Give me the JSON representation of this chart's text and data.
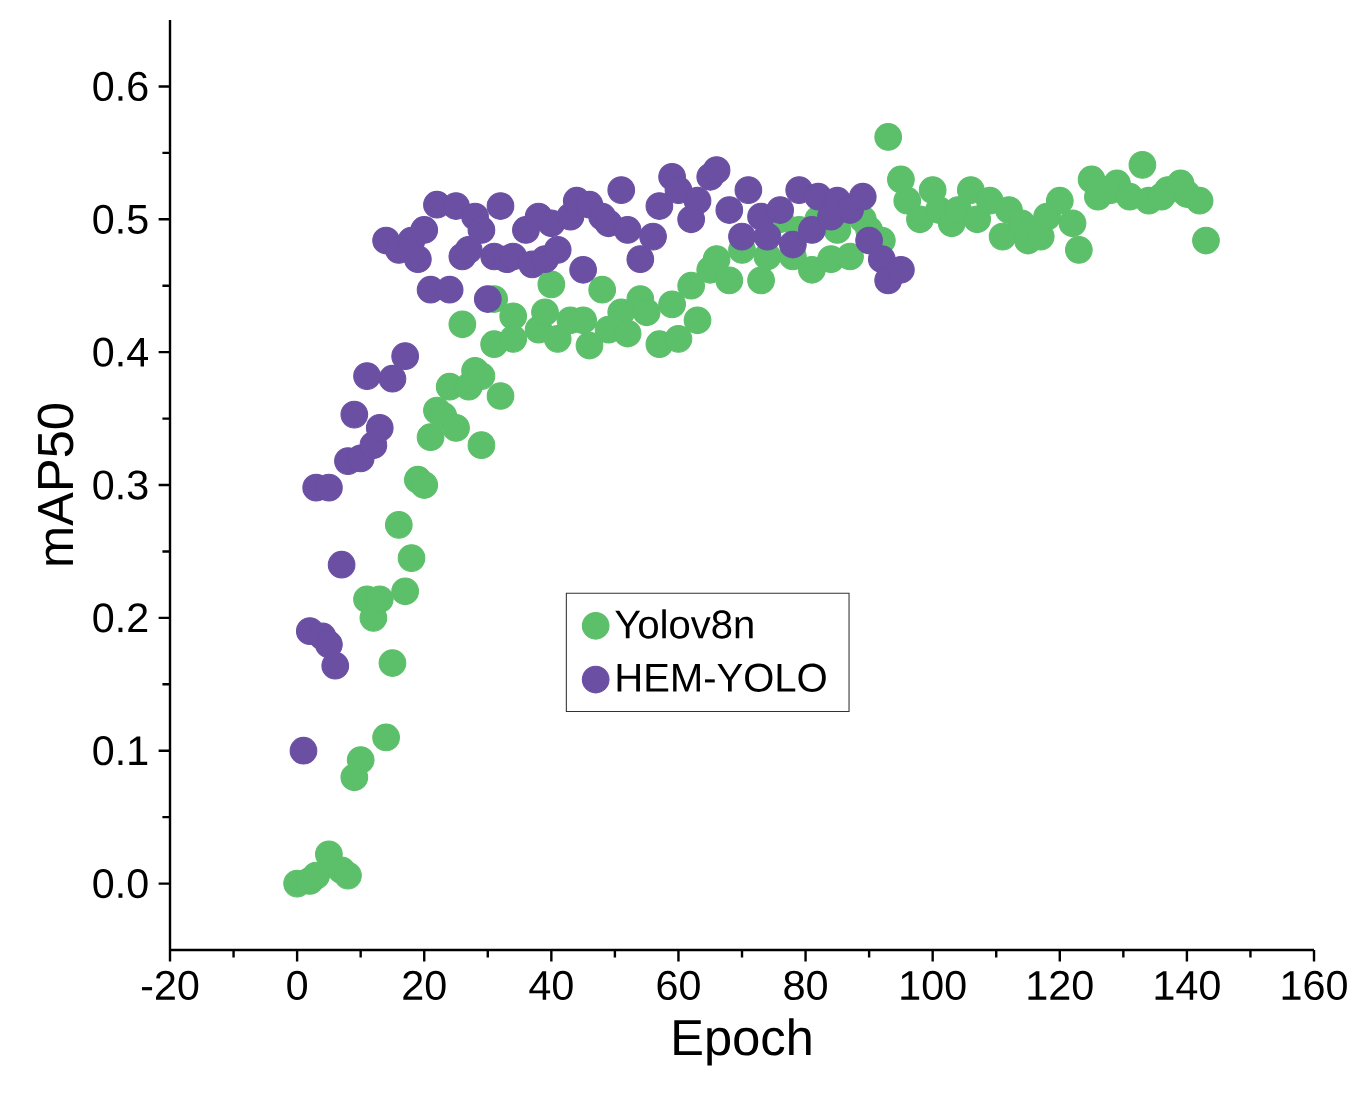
{
  "chart_data": {
    "type": "scatter",
    "xlabel": "Epoch",
    "ylabel": "mAP50",
    "xlim": [
      -20,
      160
    ],
    "xticks": [
      -20,
      0,
      20,
      40,
      60,
      80,
      100,
      120,
      140,
      160
    ],
    "ylim": [
      -0.05,
      0.65
    ],
    "yticks": [
      {
        "value": 0.0,
        "label": "0.0"
      },
      0.1,
      0.2,
      0.3,
      0.4,
      0.5,
      0.6
    ],
    "legend": "center",
    "series": [
      {
        "name": "Yolov8n",
        "color": "#5cbf6a",
        "x": [
          0,
          2,
          3,
          5,
          7,
          8,
          9,
          10,
          11,
          12,
          13,
          14,
          15,
          16,
          17,
          18,
          19,
          20,
          21,
          22,
          23,
          24,
          25,
          26,
          27,
          28,
          29,
          29,
          31,
          31,
          32,
          34,
          34,
          38,
          39,
          40,
          41,
          43,
          45,
          46,
          48,
          49,
          51,
          52,
          54,
          55,
          57,
          59,
          60,
          62,
          63,
          65,
          66,
          68,
          70,
          73,
          74,
          76,
          78,
          79,
          81,
          82,
          84,
          85,
          87,
          89,
          90,
          92,
          93,
          95,
          96,
          98,
          100,
          101,
          103,
          104,
          106,
          107,
          109,
          111,
          112,
          114,
          115,
          117,
          118,
          120,
          122,
          123,
          125,
          126,
          128,
          129,
          131,
          133,
          134,
          136,
          137,
          139,
          140,
          142,
          143
        ],
        "values": [
          0.0,
          0.002,
          0.006,
          0.022,
          0.01,
          0.006,
          0.08,
          0.093,
          0.214,
          0.2,
          0.214,
          0.11,
          0.166,
          0.27,
          0.22,
          0.245,
          0.304,
          0.3,
          0.336,
          0.356,
          0.352,
          0.374,
          0.343,
          0.421,
          0.374,
          0.386,
          0.382,
          0.33,
          0.44,
          0.406,
          0.367,
          0.427,
          0.41,
          0.417,
          0.43,
          0.451,
          0.41,
          0.424,
          0.424,
          0.405,
          0.447,
          0.417,
          0.43,
          0.414,
          0.44,
          0.43,
          0.406,
          0.436,
          0.41,
          0.45,
          0.424,
          0.462,
          0.47,
          0.454,
          0.477,
          0.454,
          0.472,
          0.5,
          0.472,
          0.492,
          0.462,
          0.5,
          0.47,
          0.492,
          0.472,
          0.5,
          0.492,
          0.484,
          0.562,
          0.53,
          0.514,
          0.5,
          0.522,
          0.507,
          0.497,
          0.507,
          0.522,
          0.5,
          0.514,
          0.487,
          0.507,
          0.497,
          0.484,
          0.487,
          0.502,
          0.514,
          0.497,
          0.477,
          0.53,
          0.517,
          0.522,
          0.527,
          0.517,
          0.541,
          0.514,
          0.517,
          0.522,
          0.527,
          0.519,
          0.514,
          0.484
        ]
      },
      {
        "name": "HEM-YOLO",
        "color": "#6a4fa3",
        "x": [
          1,
          2,
          3,
          4,
          5,
          5,
          6,
          7,
          8,
          9,
          10,
          11,
          12,
          13,
          14,
          15,
          16,
          17,
          18,
          19,
          20,
          21,
          22,
          24,
          25,
          26,
          27,
          28,
          29,
          30,
          31,
          32,
          33,
          34,
          36,
          37,
          38,
          39,
          40,
          41,
          43,
          44,
          45,
          46,
          48,
          49,
          51,
          52,
          54,
          56,
          57,
          59,
          60,
          62,
          63,
          65,
          66,
          68,
          70,
          71,
          73,
          74,
          76,
          78,
          79,
          81,
          82,
          84,
          85,
          87,
          89,
          90,
          92,
          93,
          95
        ],
        "values": [
          0.1,
          0.19,
          0.298,
          0.186,
          0.18,
          0.298,
          0.164,
          0.24,
          0.318,
          0.353,
          0.32,
          0.382,
          0.33,
          0.343,
          0.484,
          0.38,
          0.477,
          0.397,
          0.484,
          0.47,
          0.492,
          0.447,
          0.511,
          0.447,
          0.51,
          0.472,
          0.477,
          0.502,
          0.492,
          0.44,
          0.472,
          0.51,
          0.47,
          0.472,
          0.492,
          0.466,
          0.502,
          0.47,
          0.497,
          0.477,
          0.502,
          0.514,
          0.462,
          0.511,
          0.502,
          0.497,
          0.522,
          0.492,
          0.47,
          0.487,
          0.51,
          0.532,
          0.522,
          0.5,
          0.514,
          0.532,
          0.537,
          0.507,
          0.487,
          0.522,
          0.502,
          0.487,
          0.507,
          0.481,
          0.522,
          0.492,
          0.517,
          0.502,
          0.514,
          0.507,
          0.517,
          0.484,
          0.47,
          0.454,
          0.462
        ]
      }
    ]
  }
}
